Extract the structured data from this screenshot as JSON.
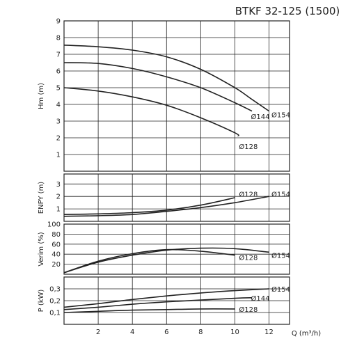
{
  "chart_data": {
    "type": "line",
    "title": "BTKF 32-125 (1500)",
    "xlabel": "Q (m³/h)",
    "x_ticks": [
      "2",
      "4",
      "6",
      "8",
      "10",
      "12"
    ],
    "xlim": [
      0,
      13.2
    ],
    "grid": true,
    "panels": [
      {
        "id": "head",
        "ylabel": "Hm (m)",
        "ylim": [
          0,
          9
        ],
        "y_ticks": [
          {
            "v": 1,
            "t": "1"
          },
          {
            "v": 2,
            "t": "2"
          },
          {
            "v": 3,
            "t": "3"
          },
          {
            "v": 4,
            "t": "4"
          },
          {
            "v": 5,
            "t": "5"
          },
          {
            "v": 6,
            "t": "6"
          },
          {
            "v": 7,
            "t": "7"
          },
          {
            "v": 8,
            "t": "8"
          },
          {
            "v": 9,
            "t": "9"
          }
        ],
        "series": [
          {
            "name": "Ø154",
            "label_at": [
              12.1,
              3.4
            ],
            "points": [
              [
                0,
                7.55
              ],
              [
                2,
                7.45
              ],
              [
                4,
                7.25
              ],
              [
                6,
                6.85
              ],
              [
                8,
                6.1
              ],
              [
                10,
                5.0
              ],
              [
                11,
                4.3
              ],
              [
                12,
                3.6
              ]
            ]
          },
          {
            "name": "Ø144",
            "label_at": [
              10.9,
              3.3
            ],
            "points": [
              [
                0,
                6.5
              ],
              [
                2,
                6.45
              ],
              [
                4,
                6.15
              ],
              [
                6,
                5.65
              ],
              [
                8,
                5.0
              ],
              [
                10,
                4.1
              ],
              [
                11,
                3.6
              ]
            ]
          },
          {
            "name": "Ø128",
            "label_at": [
              10.2,
              1.5
            ],
            "points": [
              [
                0,
                5.0
              ],
              [
                2,
                4.8
              ],
              [
                4,
                4.45
              ],
              [
                6,
                3.95
              ],
              [
                8,
                3.2
              ],
              [
                10,
                2.3
              ],
              [
                10.2,
                2.1
              ]
            ]
          }
        ]
      },
      {
        "id": "npsh",
        "ylabel": "ENPY (m)",
        "ylim": [
          0,
          3.8
        ],
        "y_ticks": [
          {
            "v": 1,
            "t": "1"
          },
          {
            "v": 2,
            "t": "2"
          },
          {
            "v": 3,
            "t": "3"
          }
        ],
        "series": [
          {
            "name": "Ø128",
            "label_at": [
              10.2,
              2.2
            ],
            "points": [
              [
                0,
                0.55
              ],
              [
                2,
                0.6
              ],
              [
                4,
                0.7
              ],
              [
                6,
                0.9
              ],
              [
                8,
                1.3
              ],
              [
                10,
                1.9
              ]
            ]
          },
          {
            "name": "Ø154",
            "label_at": [
              12.1,
              2.2
            ],
            "points": [
              [
                0,
                0.4
              ],
              [
                2,
                0.45
              ],
              [
                4,
                0.55
              ],
              [
                6,
                0.8
              ],
              [
                8,
                1.1
              ],
              [
                10,
                1.5
              ],
              [
                12,
                2.0
              ]
            ]
          }
        ]
      },
      {
        "id": "eff",
        "ylabel": "Verim (%)",
        "ylim": [
          0,
          100
        ],
        "y_ticks": [
          {
            "v": 20,
            "t": "20"
          },
          {
            "v": 40,
            "t": "40"
          },
          {
            "v": 60,
            "t": "60"
          },
          {
            "v": 80,
            "t": "80"
          },
          {
            "v": 100,
            "t": "100"
          }
        ],
        "series": [
          {
            "name": "Ø128",
            "label_at": [
              10.2,
              34
            ],
            "points": [
              [
                0,
                3
              ],
              [
                2,
                26
              ],
              [
                4,
                41
              ],
              [
                6,
                49
              ],
              [
                8,
                46
              ],
              [
                10,
                38
              ]
            ]
          },
          {
            "name": "Ø154",
            "label_at": [
              12.1,
              38
            ],
            "points": [
              [
                0,
                3
              ],
              [
                2,
                24
              ],
              [
                4,
                38
              ],
              [
                6,
                48
              ],
              [
                8,
                52
              ],
              [
                10,
                51
              ],
              [
                12,
                44
              ]
            ]
          }
        ]
      },
      {
        "id": "power",
        "ylabel": "P (kW)",
        "ylim": [
          0,
          0.4
        ],
        "y_ticks": [
          {
            "v": 0.1,
            "t": "0,1"
          },
          {
            "v": 0.2,
            "t": "0,2"
          },
          {
            "v": 0.3,
            "t": "0,3"
          }
        ],
        "series": [
          {
            "name": "Ø154",
            "label_at": [
              12.1,
              0.3
            ],
            "points": [
              [
                0,
                0.145
              ],
              [
                2,
                0.175
              ],
              [
                4,
                0.21
              ],
              [
                6,
                0.24
              ],
              [
                8,
                0.265
              ],
              [
                10,
                0.285
              ],
              [
                12,
                0.3
              ]
            ]
          },
          {
            "name": "Ø144",
            "label_at": [
              10.9,
              0.225
            ],
            "points": [
              [
                0,
                0.125
              ],
              [
                2,
                0.145
              ],
              [
                4,
                0.17
              ],
              [
                6,
                0.19
              ],
              [
                8,
                0.205
              ],
              [
                10,
                0.22
              ],
              [
                11,
                0.225
              ]
            ]
          },
          {
            "name": "Ø128",
            "label_at": [
              10.2,
              0.13
            ],
            "points": [
              [
                0,
                0.1
              ],
              [
                2,
                0.11
              ],
              [
                4,
                0.12
              ],
              [
                6,
                0.125
              ],
              [
                8,
                0.13
              ],
              [
                10,
                0.13
              ]
            ]
          }
        ]
      }
    ]
  }
}
